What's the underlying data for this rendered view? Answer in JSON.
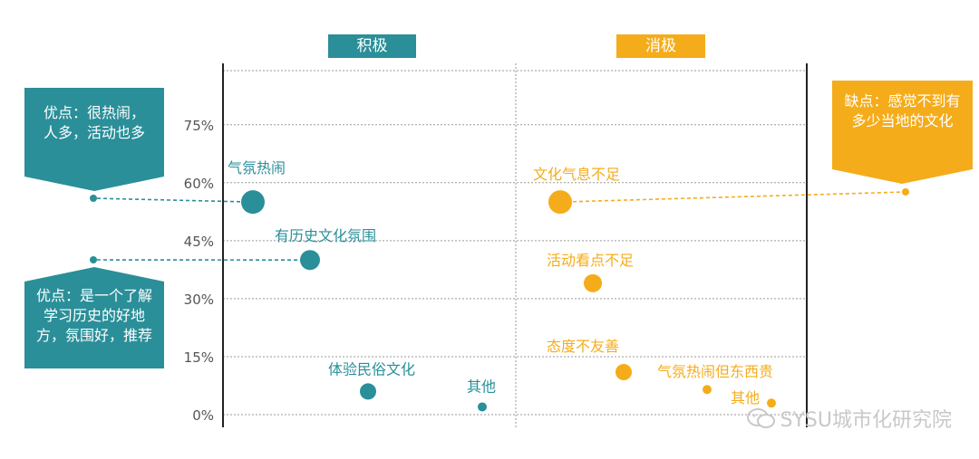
{
  "headers": {
    "positive": "积极",
    "negative": "消极"
  },
  "callouts": {
    "pro_lively": "优点：很热闹，人多，活动也多",
    "pro_history": "优点：是一个了解学习历史的好地方，氛围好，推荐",
    "con_culture": "缺点：感觉不到有多少当地的文化"
  },
  "watermark": "SYSU城市化研究院",
  "colors": {
    "teal": "#2a8f99",
    "orange": "#f5ac1b",
    "grid": "#9a9a9a",
    "axis": "#222222",
    "label": "#555555"
  },
  "chart_data": {
    "type": "scatter",
    "y_ticks": [
      "0%",
      "15%",
      "30%",
      "45%",
      "60%",
      "75%"
    ],
    "ylim": [
      -2,
      88
    ],
    "series": [
      {
        "name": "积极",
        "color": "#2a8f99",
        "points": [
          {
            "label": "气氛热闹",
            "y": 55,
            "size": 13
          },
          {
            "label": "有历史文化氛围",
            "y": 40,
            "size": 11
          },
          {
            "label": "体验民俗文化",
            "y": 6,
            "size": 9
          },
          {
            "label": "其他",
            "y": 2,
            "size": 5
          }
        ]
      },
      {
        "name": "消极",
        "color": "#f5ac1b",
        "points": [
          {
            "label": "文化气息不足",
            "y": 55,
            "size": 13
          },
          {
            "label": "活动看点不足",
            "y": 34,
            "size": 10
          },
          {
            "label": "态度不友善",
            "y": 11,
            "size": 9
          },
          {
            "label": "气氛热闹但东西贵",
            "y": 6.5,
            "size": 5
          },
          {
            "label": "其他",
            "y": 3,
            "size": 5
          }
        ]
      }
    ]
  }
}
